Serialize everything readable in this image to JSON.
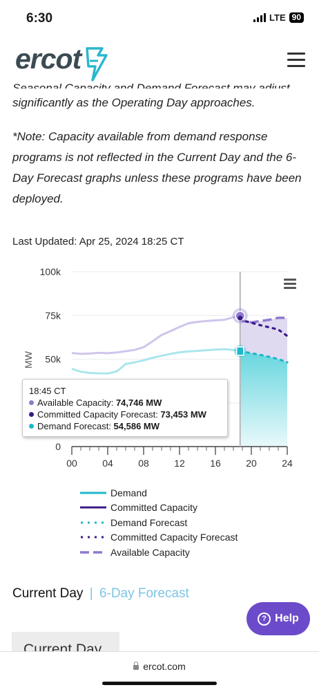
{
  "status": {
    "time": "6:30",
    "network": "LTE",
    "battery": "90"
  },
  "header": {
    "logo": "ercot",
    "menu_icon": "hamburger-menu-icon"
  },
  "text": {
    "cut_line": "Seasonal Capacity and Demand Forecast may adjust",
    "para1": "significantly as the Operating Day approaches.",
    "note": "*Note: Capacity available from demand response programs is not reflected in the Current Day and the 6-Day Forecast graphs unless these programs have been deployed."
  },
  "last_updated": "Last Updated: Apr 25, 2024 18:25 CT",
  "colors": {
    "demand": "#1cb8c9",
    "committed": "#3b1a87",
    "available": "#8d79cf",
    "available_fill": "#ddd6ef",
    "demand_fill": "#67d6de",
    "help": "#6b4bc9",
    "tab_link": "#7ec4e6"
  },
  "chart_data": {
    "type": "line",
    "ylabel": "MW",
    "xlabel": "",
    "ylim": [
      0,
      100000
    ],
    "xlim": [
      0,
      24
    ],
    "yticks": [
      "0",
      "25k",
      "50k",
      "75k",
      "100k"
    ],
    "xticks": [
      "00",
      "04",
      "08",
      "12",
      "16",
      "20",
      "24"
    ],
    "crosshair_x": 18.75,
    "series": [
      {
        "name": "Demand",
        "style": "solid",
        "x": [
          0,
          1,
          2,
          3,
          4,
          5,
          5.5,
          6,
          7,
          8,
          9,
          10,
          11,
          12,
          13,
          14,
          15,
          16,
          17,
          18,
          18.75
        ],
        "y": [
          44500,
          42800,
          42100,
          41900,
          41800,
          43000,
          45000,
          47200,
          48200,
          49300,
          50800,
          51900,
          53000,
          53900,
          54400,
          54700,
          55100,
          55400,
          55700,
          55200,
          54586
        ]
      },
      {
        "name": "Committed Capacity",
        "style": "solid",
        "x": [],
        "y": []
      },
      {
        "name": "Demand Forecast",
        "style": "dotted",
        "x": [
          18.75,
          19,
          20,
          21,
          22,
          23,
          24
        ],
        "y": [
          54586,
          54300,
          53400,
          52400,
          51300,
          50000,
          48200
        ]
      },
      {
        "name": "Committed Capacity Forecast",
        "style": "dotted",
        "x": [
          18.75,
          19,
          20,
          21,
          22,
          23,
          24
        ],
        "y": [
          73453,
          72200,
          70800,
          69400,
          68200,
          66900,
          63300
        ]
      },
      {
        "name": "Available Capacity",
        "style": "dashed",
        "x": [
          0,
          1,
          2,
          3,
          4,
          5,
          6,
          7,
          8,
          9,
          10,
          11,
          12,
          13,
          14,
          15,
          16,
          17,
          18,
          18.75,
          19,
          20,
          21,
          22,
          23,
          24
        ],
        "y": [
          53500,
          53000,
          53200,
          53600,
          53400,
          53800,
          54500,
          55300,
          56800,
          60200,
          63800,
          66000,
          68400,
          70500,
          71300,
          71800,
          72200,
          72500,
          74000,
          74746,
          71800,
          71000,
          71800,
          72500,
          73600,
          73600
        ]
      }
    ],
    "tooltip": {
      "time": "18:45 CT",
      "rows": [
        {
          "label": "Available Capacity: ",
          "value": "74,746 MW",
          "color": "#8d79cf"
        },
        {
          "label": "Committed Capacity Forecast: ",
          "value": "73,453 MW",
          "color": "#3b1a87"
        },
        {
          "label": "Demand Forecast: ",
          "value": "54,586 MW",
          "color": "#1cb8c9"
        }
      ]
    },
    "legend": [
      "Demand",
      "Committed Capacity",
      "Demand Forecast",
      "Committed Capacity Forecast",
      "Available Capacity"
    ]
  },
  "tabs": {
    "active": "Current Day",
    "separator": "|",
    "link": "6-Day Forecast"
  },
  "help": {
    "label": "Help"
  },
  "panel": {
    "label": "Current Day"
  },
  "url": "ercot.com"
}
